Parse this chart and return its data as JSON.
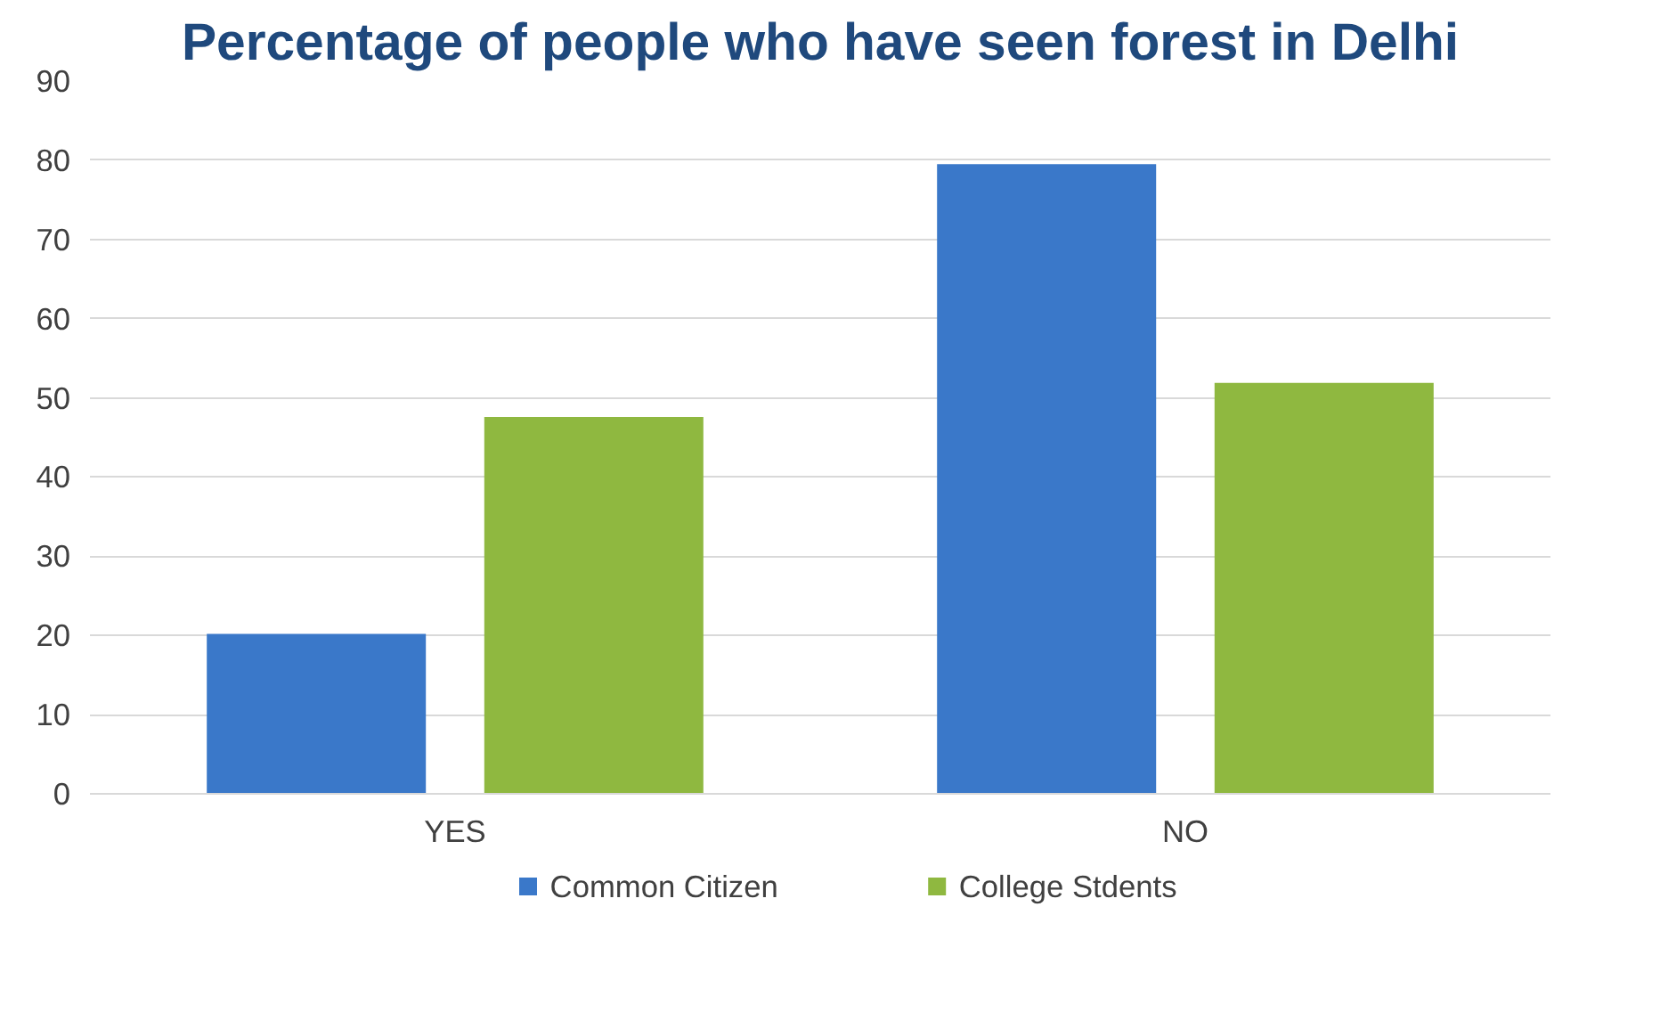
{
  "chart_data": {
    "type": "bar",
    "title": "Percentage of people who have seen forest in Delhi",
    "categories": [
      "YES",
      "NO"
    ],
    "series": [
      {
        "name": "Common Citizen",
        "color": "#3a78c9",
        "values": [
          20.2,
          79.5
        ]
      },
      {
        "name": "College Stdents",
        "color": "#8fb840",
        "values": [
          47.6,
          51.9
        ]
      }
    ],
    "ylim": [
      0,
      90
    ],
    "yticks": [
      0,
      10,
      20,
      30,
      40,
      50,
      60,
      70,
      80,
      90
    ],
    "grid": "y",
    "legend": "bottom"
  }
}
